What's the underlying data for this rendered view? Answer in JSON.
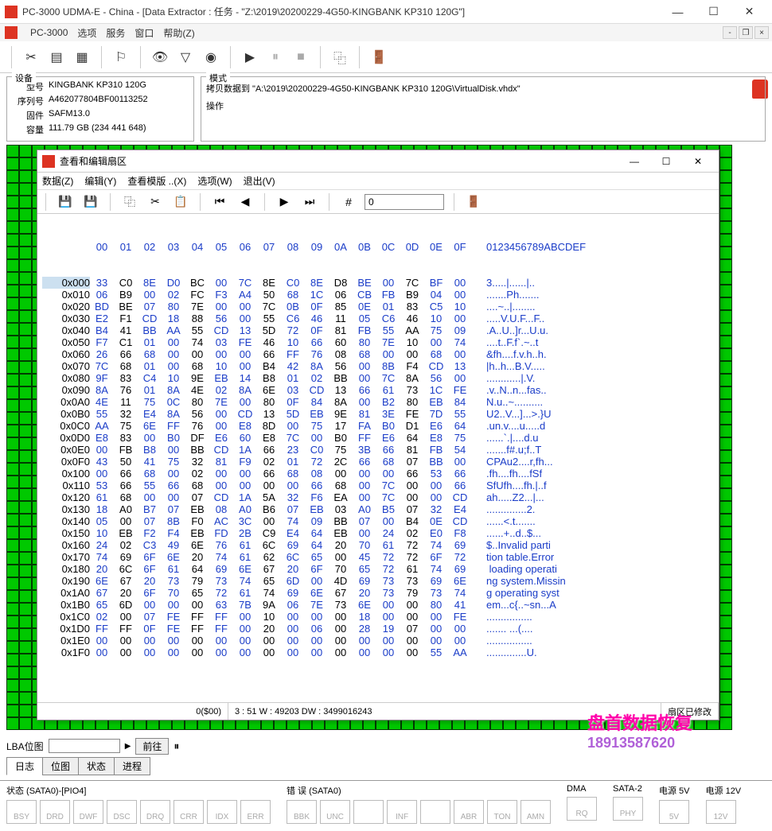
{
  "window": {
    "title": "PC-3000 UDMA-E - China - [Data Extractor : 任务 - \"Z:\\2019\\20200229-4G50-KINGBANK KP310 120G\"]",
    "min": "—",
    "max": "☐",
    "close": "✕"
  },
  "menubar": {
    "app": "PC-3000",
    "items": [
      "选项",
      "服务",
      "窗口",
      "帮助(Z)"
    ]
  },
  "device_panel": {
    "legend": "设备",
    "rows": [
      {
        "label": "型号",
        "value": "KINGBANK KP310 120G"
      },
      {
        "label": "序列号",
        "value": "A462077804BF00113252"
      },
      {
        "label": "固件",
        "value": "SAFM13.0"
      },
      {
        "label": "容量",
        "value": "111.79 GB (234 441 648)"
      }
    ]
  },
  "mode_panel": {
    "legend": "模式",
    "copy_text": "拷贝数据到 \"A:\\2019\\20200229-4G50-KINGBANK KP310 120G\\VirtualDisk.vhdx\"",
    "op_legend": "操作"
  },
  "hex": {
    "title": "查看和编辑扇区",
    "menu": [
      "数据(Z)",
      "编辑(Y)",
      "查看模版 ..(X)",
      "选项(W)",
      "退出(V)"
    ],
    "goto": "0",
    "header_offsets": "00 01 02 03 04 05 06 07 08 09 0A 0B 0C 0D 0E 0F",
    "header_ascii": "0123456789ABCDEF",
    "lines": [
      {
        "off": "0x000",
        "hex": "33 C0 8E D0 BC 00 7C 8E C0 8E D8 BE 00 7C BF 00",
        "asc": "3.....|......|.."
      },
      {
        "off": "0x010",
        "hex": "06 B9 00 02 FC F3 A4 50 68 1C 06 CB FB B9 04 00",
        "asc": ".......Ph......."
      },
      {
        "off": "0x020",
        "hex": "BD BE 07 80 7E 00 00 7C 0B 0F 85 0E 01 83 C5 10",
        "asc": "....~..|........"
      },
      {
        "off": "0x030",
        "hex": "E2 F1 CD 18 88 56 00 55 C6 46 11 05 C6 46 10 00",
        "asc": ".....V.U.F...F.."
      },
      {
        "off": "0x040",
        "hex": "B4 41 BB AA 55 CD 13 5D 72 0F 81 FB 55 AA 75 09",
        "asc": ".A..U..]r...U.u."
      },
      {
        "off": "0x050",
        "hex": "F7 C1 01 00 74 03 FE 46 10 66 60 80 7E 10 00 74",
        "asc": "....t..F.f`.~..t"
      },
      {
        "off": "0x060",
        "hex": "26 66 68 00 00 00 00 66 FF 76 08 68 00 00 68 00",
        "asc": "&fh....f.v.h..h."
      },
      {
        "off": "0x070",
        "hex": "7C 68 01 00 68 10 00 B4 42 8A 56 00 8B F4 CD 13",
        "asc": "|h..h...B.V....."
      },
      {
        "off": "0x080",
        "hex": "9F 83 C4 10 9E EB 14 B8 01 02 BB 00 7C 8A 56 00",
        "asc": "............|.V."
      },
      {
        "off": "0x090",
        "hex": "8A 76 01 8A 4E 02 8A 6E 03 CD 13 66 61 73 1C FE",
        "asc": ".v..N..n...fas.."
      },
      {
        "off": "0x0A0",
        "hex": "4E 11 75 0C 80 7E 00 80 0F 84 8A 00 B2 80 EB 84",
        "asc": "N.u..~.........."
      },
      {
        "off": "0x0B0",
        "hex": "55 32 E4 8A 56 00 CD 13 5D EB 9E 81 3E FE 7D 55",
        "asc": "U2..V...]...>.}U"
      },
      {
        "off": "0x0C0",
        "hex": "AA 75 6E FF 76 00 E8 8D 00 75 17 FA B0 D1 E6 64",
        "asc": ".un.v....u.....d"
      },
      {
        "off": "0x0D0",
        "hex": "E8 83 00 B0 DF E6 60 E8 7C 00 B0 FF E6 64 E8 75",
        "asc": "......`.|....d.u"
      },
      {
        "off": "0x0E0",
        "hex": "00 FB B8 00 BB CD 1A 66 23 C0 75 3B 66 81 FB 54",
        "asc": ".......f#.u;f..T"
      },
      {
        "off": "0x0F0",
        "hex": "43 50 41 75 32 81 F9 02 01 72 2C 66 68 07 BB 00",
        "asc": "CPAu2....r,fh..."
      },
      {
        "off": "0x100",
        "hex": "00 66 68 00 02 00 00 66 68 08 00 00 00 66 53 66",
        "asc": ".fh....fh....fSf"
      },
      {
        "off": "0x110",
        "hex": "53 66 55 66 68 00 00 00 00 66 68 00 7C 00 00 66",
        "asc": "SfUfh....fh.|..f"
      },
      {
        "off": "0x120",
        "hex": "61 68 00 00 07 CD 1A 5A 32 F6 EA 00 7C 00 00 CD",
        "asc": "ah.....Z2...|..."
      },
      {
        "off": "0x130",
        "hex": "18 A0 B7 07 EB 08 A0 B6 07 EB 03 A0 B5 07 32 E4",
        "asc": "..............2."
      },
      {
        "off": "0x140",
        "hex": "05 00 07 8B F0 AC 3C 00 74 09 BB 07 00 B4 0E CD",
        "asc": "......<.t......."
      },
      {
        "off": "0x150",
        "hex": "10 EB F2 F4 EB FD 2B C9 E4 64 EB 00 24 02 E0 F8",
        "asc": "......+..d..$..."
      },
      {
        "off": "0x160",
        "hex": "24 02 C3 49 6E 76 61 6C 69 64 20 70 61 72 74 69",
        "asc": "$..Invalid parti"
      },
      {
        "off": "0x170",
        "hex": "74 69 6F 6E 20 74 61 62 6C 65 00 45 72 72 6F 72",
        "asc": "tion table.Error"
      },
      {
        "off": "0x180",
        "hex": "20 6C 6F 61 64 69 6E 67 20 6F 70 65 72 61 74 69",
        "asc": " loading operati"
      },
      {
        "off": "0x190",
        "hex": "6E 67 20 73 79 73 74 65 6D 00 4D 69 73 73 69 6E",
        "asc": "ng system.Missin"
      },
      {
        "off": "0x1A0",
        "hex": "67 20 6F 70 65 72 61 74 69 6E 67 20 73 79 73 74",
        "asc": "g operating syst"
      },
      {
        "off": "0x1B0",
        "hex": "65 6D 00 00 00 63 7B 9A 06 7E 73 6E 00 00 80 41",
        "asc": "em...c{..~sn...A"
      },
      {
        "off": "0x1C0",
        "hex": "02 00 07 FE FF FF 00 10 00 00 00 18 00 00 00 FE",
        "asc": "................"
      },
      {
        "off": "0x1D0",
        "hex": "FF FF 0F FE FF FF 00 20 00 06 00 28 19 07 00 00",
        "asc": "....... ...(...."
      },
      {
        "off": "0x1E0",
        "hex": "00 00 00 00 00 00 00 00 00 00 00 00 00 00 00 00",
        "asc": "................"
      },
      {
        "off": "0x1F0",
        "hex": "00 00 00 00 00 00 00 00 00 00 00 00 00 00 55 AA",
        "asc": "..............U."
      }
    ],
    "status_left": "0($00)",
    "status_mid": "3 : 51 W : 49203 DW : 3499016243",
    "status_right": "扇区已修改"
  },
  "lba": {
    "label": "LBA位图",
    "input": "",
    "go": "前往"
  },
  "tabs": [
    "日志",
    "位图",
    "状态",
    "进程"
  ],
  "status_groups": [
    {
      "label": "状态 (SATA0)-[PIO4]",
      "leds": [
        "BSY",
        "DRD",
        "DWF",
        "DSC",
        "DRQ",
        "CRR",
        "IDX",
        "ERR"
      ]
    },
    {
      "label": "错 误 (SATA0)",
      "leds": [
        "BBK",
        "UNC",
        "",
        "INF",
        "",
        "ABR",
        "TON",
        "AMN"
      ]
    },
    {
      "label": "DMA",
      "leds": [
        "RQ"
      ]
    },
    {
      "label": "SATA-2",
      "leds": [
        "PHY"
      ]
    },
    {
      "label": "电源 5V",
      "leds": [
        "5V"
      ]
    },
    {
      "label": "电源 12V",
      "leds": [
        "12V"
      ]
    }
  ],
  "watermark": {
    "line1": "盘首数据恢复",
    "line2": "18913587620"
  }
}
